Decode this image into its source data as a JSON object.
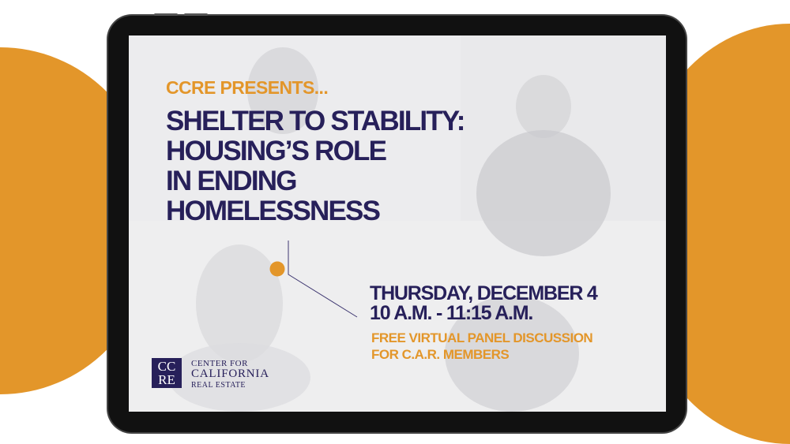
{
  "header": {
    "presenter": "CCRE PRESENTS..."
  },
  "title": {
    "lines": [
      "SHELTER TO STABILITY:",
      "HOUSING’S ROLE",
      "IN ENDING",
      "HOMELESSNESS"
    ]
  },
  "event": {
    "date": "THURSDAY, DECEMBER 4",
    "time": "10 A.M. - 11:15 A.M.",
    "details": [
      "FREE VIRTUAL PANEL DISCUSSION",
      "FOR C.A.R. MEMBERS"
    ]
  },
  "logo": {
    "mark": [
      "CC",
      "RE"
    ],
    "lines": [
      "CENTER FOR",
      "CALIFORNIA",
      "REAL ESTATE"
    ]
  },
  "colors": {
    "accent": "#E3962A",
    "primary": "#27205A"
  }
}
